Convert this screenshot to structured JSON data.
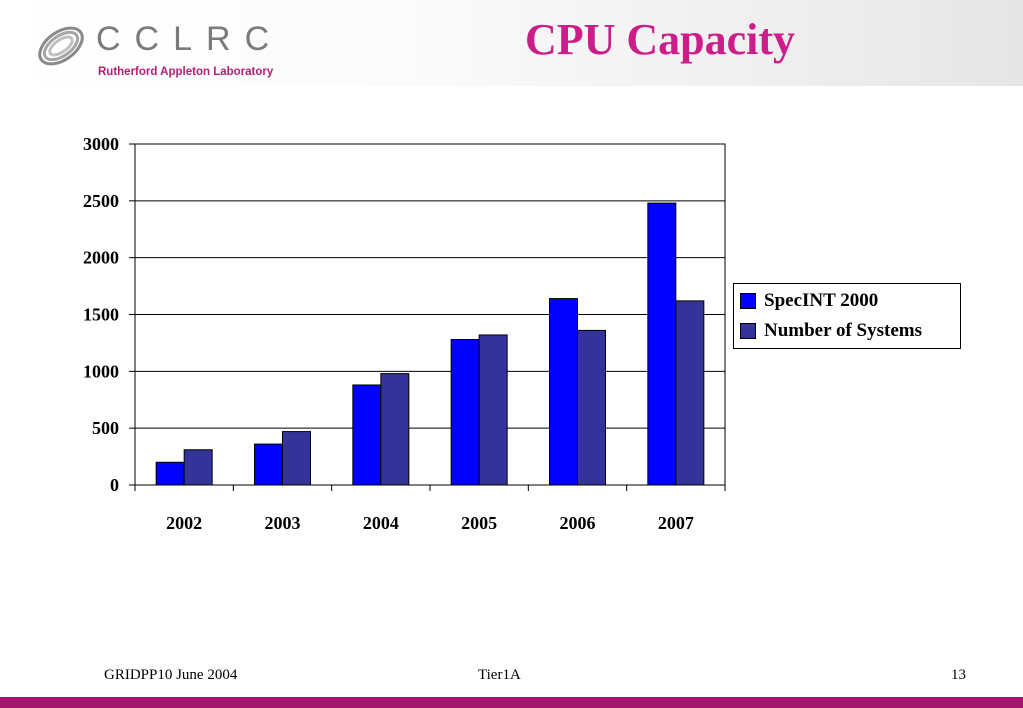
{
  "header": {
    "logo_name": "CCLRC",
    "logo_subtitle": "Rutherford Appleton Laboratory",
    "title": "CPU Capacity",
    "title_color": "#cc1e8a"
  },
  "chart_data": {
    "type": "bar",
    "categories": [
      "2002",
      "2003",
      "2004",
      "2005",
      "2006",
      "2007"
    ],
    "series": [
      {
        "name": "SpecINT 2000",
        "color": "#0000ff",
        "values": [
          200,
          360,
          880,
          1280,
          1640,
          2480
        ]
      },
      {
        "name": "Number of Systems",
        "color": "#333399",
        "values": [
          310,
          470,
          980,
          1320,
          1360,
          1620
        ]
      }
    ],
    "ylim": [
      0,
      3000
    ],
    "yticks": [
      0,
      500,
      1000,
      1500,
      2000,
      2500,
      3000
    ],
    "grid": true,
    "legend_position": "right"
  },
  "footer": {
    "left": "GRIDPP10 June 2004",
    "center": "Tier1A",
    "page_number": "13",
    "bar_color": "#a3166e"
  }
}
